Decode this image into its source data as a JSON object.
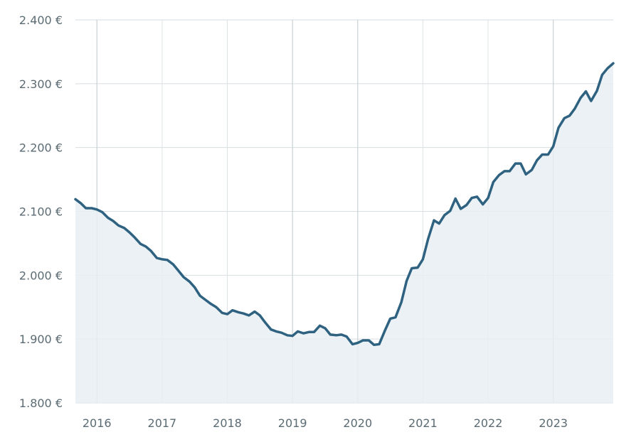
{
  "colors": {
    "line": "#2e6280",
    "area": "#e8eef2",
    "grid": "#d7dde0",
    "tick_text": "#5b6b73"
  },
  "chart_data": {
    "type": "area",
    "title": "",
    "xlabel": "",
    "ylabel": "",
    "ylim": [
      1800,
      2400
    ],
    "xlim": [
      2015.67,
      2023.92
    ],
    "grid": true,
    "y_ticks": [
      {
        "value": 1800,
        "label": "1.800 €"
      },
      {
        "value": 1900,
        "label": "1.900 €"
      },
      {
        "value": 2000,
        "label": "2.000 €"
      },
      {
        "value": 2100,
        "label": "2.100 €"
      },
      {
        "value": 2200,
        "label": "2.200 €"
      },
      {
        "value": 2300,
        "label": "2.300 €"
      },
      {
        "value": 2400,
        "label": "2.400 €"
      }
    ],
    "x_ticks": [
      {
        "value": 2016,
        "label": "2016"
      },
      {
        "value": 2017,
        "label": "2017"
      },
      {
        "value": 2018,
        "label": "2018"
      },
      {
        "value": 2019,
        "label": "2019"
      },
      {
        "value": 2020,
        "label": "2020"
      },
      {
        "value": 2021,
        "label": "2021"
      },
      {
        "value": 2022,
        "label": "2022"
      },
      {
        "value": 2023,
        "label": "2023"
      }
    ],
    "major_years": [
      2016,
      2019,
      2020,
      2023
    ],
    "series": [
      {
        "x": [
          2015.67,
          2015.75,
          2015.83,
          2015.92,
          2016.0,
          2016.08,
          2016.17,
          2016.25,
          2016.33,
          2016.42,
          2016.5,
          2016.58,
          2016.67,
          2016.75,
          2016.83,
          2016.92,
          2017.0,
          2017.08,
          2017.17,
          2017.25,
          2017.33,
          2017.42,
          2017.5,
          2017.58,
          2017.67,
          2017.75,
          2017.83,
          2017.92,
          2018.0,
          2018.08,
          2018.17,
          2018.25,
          2018.33,
          2018.42,
          2018.5,
          2018.58,
          2018.67,
          2018.75,
          2018.83,
          2018.92,
          2019.0,
          2019.08,
          2019.17,
          2019.25,
          2019.33,
          2019.42,
          2019.5,
          2019.58,
          2019.67,
          2019.75,
          2019.83,
          2019.92,
          2020.0,
          2020.08,
          2020.17,
          2020.25,
          2020.33,
          2020.42,
          2020.5,
          2020.58,
          2020.67,
          2020.75,
          2020.83,
          2020.92,
          2021.0,
          2021.08,
          2021.17,
          2021.25,
          2021.33,
          2021.42,
          2021.5,
          2021.58,
          2021.67,
          2021.75,
          2021.83,
          2021.92,
          2022.0,
          2022.08,
          2022.17,
          2022.25,
          2022.33,
          2022.42,
          2022.5,
          2022.58,
          2022.67,
          2022.75,
          2022.83,
          2022.92,
          2023.0,
          2023.08,
          2023.17,
          2023.25,
          2023.33,
          2023.42,
          2023.5,
          2023.58,
          2023.67,
          2023.75,
          2023.83,
          2023.92
        ],
        "values": [
          2119,
          2113,
          2105,
          2105,
          2103,
          2099,
          2090,
          2085,
          2078,
          2074,
          2067,
          2059,
          2049,
          2045,
          2038,
          2027,
          2025,
          2024,
          2017,
          2007,
          1997,
          1990,
          1981,
          1968,
          1961,
          1955,
          1950,
          1941,
          1939,
          1945,
          1942,
          1940,
          1937,
          1943,
          1937,
          1926,
          1915,
          1912,
          1910,
          1906,
          1905,
          1912,
          1909,
          1911,
          1911,
          1921,
          1917,
          1907,
          1906,
          1907,
          1904,
          1892,
          1894,
          1898,
          1898,
          1891,
          1892,
          1914,
          1932,
          1934,
          1958,
          1991,
          2011,
          2012,
          2025,
          2057,
          2086,
          2081,
          2094,
          2101,
          2120,
          2104,
          2110,
          2121,
          2123,
          2111,
          2121,
          2146,
          2157,
          2163,
          2163,
          2175,
          2175,
          2158,
          2165,
          2180,
          2189,
          2189,
          2202,
          2231,
          2246,
          2250,
          2261,
          2278,
          2288,
          2273,
          2289,
          2314,
          2324,
          2332
        ]
      }
    ]
  }
}
